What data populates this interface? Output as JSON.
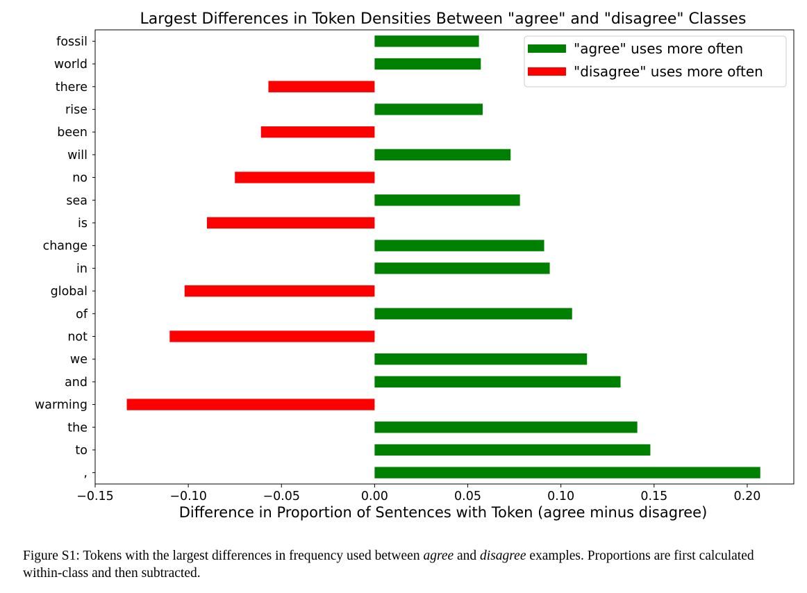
{
  "chart_data": {
    "type": "bar",
    "orientation": "horizontal",
    "title": "Largest Differences in Token Densities Between \"agree\" and \"disagree\" Classes",
    "xlabel": "Difference in Proportion of Sentences with Token (agree minus disagree)",
    "ylabel": "",
    "xlim": [
      -0.15,
      0.225
    ],
    "xticks": [
      -0.15,
      -0.1,
      -0.05,
      0.0,
      0.05,
      0.1,
      0.15,
      0.2
    ],
    "xtick_labels": [
      "−0.15",
      "−0.10",
      "−0.05",
      "0.00",
      "0.05",
      "0.10",
      "0.15",
      "0.20"
    ],
    "grid": false,
    "legend_position": "top-right",
    "categories": [
      "fossil",
      "world",
      "there",
      "rise",
      "been",
      "will",
      "no",
      "sea",
      "is",
      "change",
      "in",
      "global",
      "of",
      "not",
      "we",
      "and",
      "warming",
      "the",
      "to",
      ","
    ],
    "values": [
      0.056,
      0.057,
      -0.057,
      0.058,
      -0.061,
      0.073,
      -0.075,
      0.078,
      -0.09,
      0.091,
      0.094,
      -0.102,
      0.106,
      -0.11,
      0.114,
      0.132,
      -0.133,
      0.141,
      0.148,
      0.207
    ],
    "series": [
      {
        "name": "\"agree\" uses more often",
        "color": "#008000"
      },
      {
        "name": "\"disagree\" uses more often",
        "color": "#ff0000"
      }
    ]
  },
  "caption": {
    "prefix": "Figure S1: Tokens with the largest differences in frequency used between ",
    "term1": "agree",
    "mid": " and ",
    "term2": "disagree",
    "suffix": " examples. Proportions are first calculated within-class and then subtracted."
  }
}
